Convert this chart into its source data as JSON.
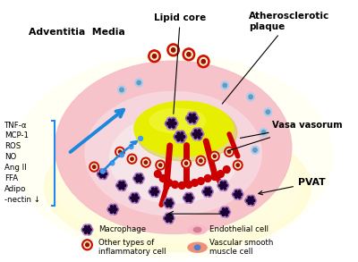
{
  "bg_color": "#ffffff",
  "pvat_color": "#fffde0",
  "pvat_edge": "#e8d870",
  "wall_outer_color": "#f9c8d0",
  "wall_inner_color": "#f5dde5",
  "lipid_core_color": "#e8ee00",
  "lipid_core_edge": "#c8cc00",
  "red_vessel_color": "#cc0000",
  "labels_left": [
    "TNF-α",
    "MCP-1",
    "ROS",
    "NO",
    "Ang II",
    "FFA",
    "Adipo",
    "-nectin ↓"
  ],
  "label_adventitia": "Adventitia  Media",
  "label_lipid": "Lipid core",
  "label_plaque": "Atherosclerotic\nplaque",
  "label_vasa": "Vasa vasorum",
  "label_pvat": "PVAT"
}
